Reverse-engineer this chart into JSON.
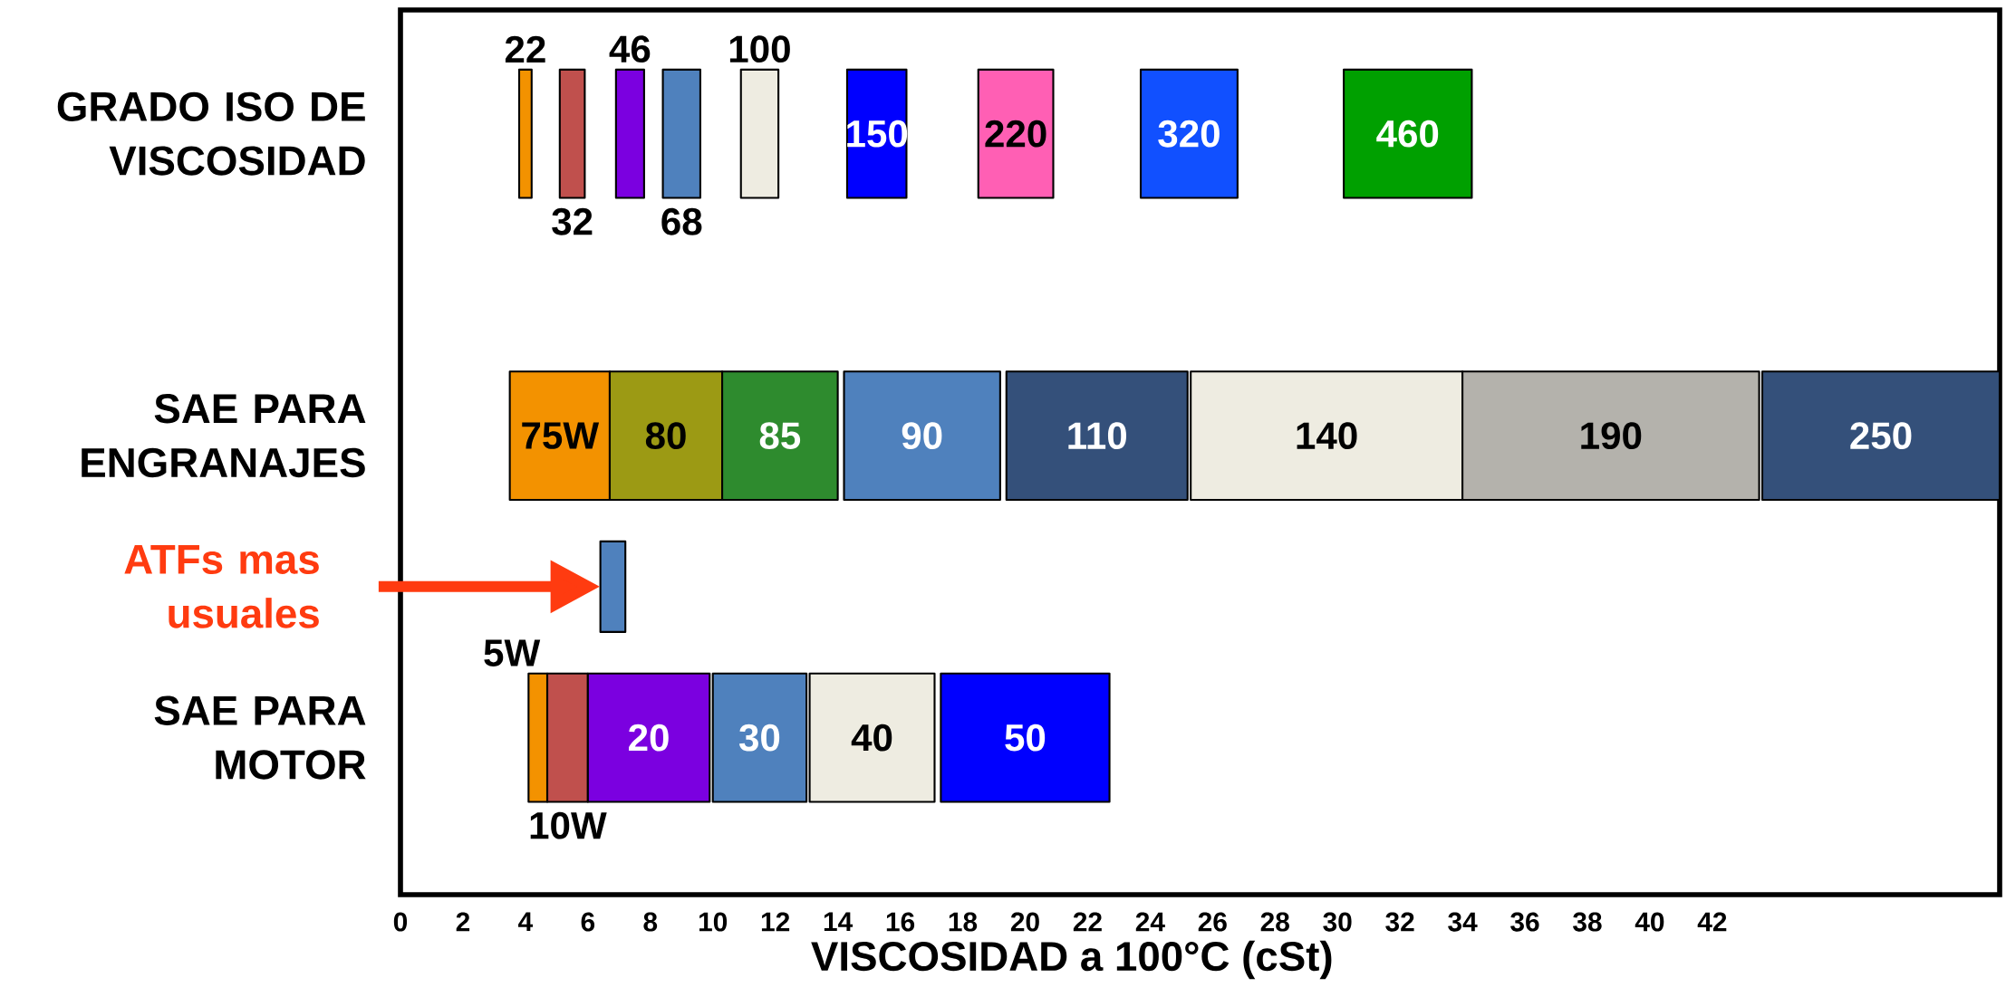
{
  "chart_data": {
    "type": "bar",
    "orientation": "horizontal",
    "xlabel": "VISCOSIDAD a 100°C (cSt)",
    "categories": [
      "GRADO ISO DE VISCOSIDAD",
      null,
      "SAE PARA ENGRANAJES",
      null,
      "SAE PARA MOTOR"
    ],
    "xlim": [
      0,
      51.2
    ],
    "xticks": [
      0,
      2,
      4,
      6,
      8,
      10,
      12,
      14,
      16,
      18,
      20,
      22,
      24,
      26,
      28,
      30,
      32,
      34,
      36,
      38,
      40,
      42
    ],
    "annotations": [
      "ATFs mas usuales"
    ],
    "series": [
      {
        "name": "22",
        "color": "#f39200",
        "base": [
          3.8,
          null,
          null,
          null,
          null
        ],
        "values": [
          0.4,
          null,
          null,
          null,
          null
        ]
      },
      {
        "name": "32",
        "color": "#c0504d",
        "base": [
          5.1,
          null,
          null,
          null,
          null
        ],
        "values": [
          0.8,
          null,
          null,
          null,
          null
        ]
      },
      {
        "name": "46",
        "color": "#7b00e0",
        "base": [
          6.9,
          null,
          null,
          null,
          null
        ],
        "values": [
          0.9,
          null,
          null,
          null,
          null
        ]
      },
      {
        "name": "68",
        "color": "#4f81bd",
        "base": [
          8.4,
          null,
          null,
          null,
          null
        ],
        "values": [
          1.2,
          null,
          null,
          null,
          null
        ]
      },
      {
        "name": "100",
        "color": "#eeece1",
        "base": [
          10.9,
          null,
          null,
          null,
          null
        ],
        "values": [
          1.2,
          null,
          null,
          null,
          null
        ]
      },
      {
        "name": "150",
        "color": "#0000ff",
        "base": [
          14.3,
          null,
          null,
          null,
          null
        ],
        "values": [
          1.9,
          null,
          null,
          null,
          null
        ]
      },
      {
        "name": "220",
        "color": "#ff5fb4",
        "base": [
          18.5,
          null,
          null,
          null,
          null
        ],
        "values": [
          2.4,
          null,
          null,
          null,
          null
        ]
      },
      {
        "name": "320",
        "color": "#1150ff",
        "base": [
          23.7,
          null,
          null,
          null,
          null
        ],
        "values": [
          3.1,
          null,
          null,
          null,
          null
        ]
      },
      {
        "name": "460",
        "color": "#00a000",
        "base": [
          30.2,
          null,
          null,
          null,
          null
        ],
        "values": [
          4.1,
          null,
          null,
          null,
          null
        ]
      },
      {
        "name": "75W",
        "color": "#f39200",
        "base": [
          null,
          null,
          3.5,
          null,
          null
        ],
        "values": [
          null,
          null,
          3.2,
          null,
          null
        ]
      },
      {
        "name": "80",
        "color": "#9c9a14",
        "base": [
          null,
          null,
          6.7,
          null,
          null
        ],
        "values": [
          null,
          null,
          3.6,
          null,
          null
        ]
      },
      {
        "name": "85",
        "color": "#2e8b2e",
        "base": [
          null,
          null,
          10.3,
          null,
          null
        ],
        "values": [
          null,
          null,
          3.7,
          null,
          null
        ]
      },
      {
        "name": "90",
        "color": "#4f81bd",
        "base": [
          null,
          null,
          14.2,
          null,
          null
        ],
        "values": [
          null,
          null,
          5.0,
          null,
          null
        ]
      },
      {
        "name": "110",
        "color": "#34507a",
        "base": [
          null,
          null,
          19.4,
          null,
          null
        ],
        "values": [
          null,
          null,
          5.8,
          null,
          null
        ]
      },
      {
        "name": "140",
        "color": "#eeece1",
        "base": [
          null,
          null,
          25.3,
          null,
          null
        ],
        "values": [
          null,
          null,
          8.7,
          null,
          null
        ]
      },
      {
        "name": "190",
        "color": "#b4b2ac",
        "base": [
          null,
          null,
          34.0,
          null,
          null
        ],
        "values": [
          null,
          null,
          9.5,
          null,
          null
        ]
      },
      {
        "name": "250",
        "color": "#34507a",
        "base": [
          null,
          null,
          43.6,
          null,
          null
        ],
        "values": [
          null,
          null,
          7.6,
          null,
          null
        ]
      },
      {
        "color": "#4f81bd",
        "base": [
          null,
          null,
          null,
          6.4,
          null
        ],
        "values": [
          null,
          null,
          null,
          0.8,
          null
        ]
      },
      {
        "name": "5W",
        "color": "#f39200",
        "base": [
          null,
          null,
          null,
          null,
          4.1
        ],
        "values": [
          null,
          null,
          null,
          null,
          0.6
        ]
      },
      {
        "name": "10W",
        "color": "#c0504d",
        "base": [
          null,
          null,
          null,
          null,
          4.7
        ],
        "values": [
          null,
          null,
          null,
          null,
          1.3
        ]
      },
      {
        "name": "20",
        "color": "#7b00e0",
        "base": [
          null,
          null,
          null,
          null,
          6.0
        ],
        "values": [
          null,
          null,
          null,
          null,
          3.9
        ]
      },
      {
        "name": "30",
        "color": "#4f81bd",
        "base": [
          null,
          null,
          null,
          null,
          10.0
        ],
        "values": [
          null,
          null,
          null,
          null,
          3.0
        ]
      },
      {
        "name": "40",
        "color": "#eeece1",
        "base": [
          null,
          null,
          null,
          null,
          13.1
        ],
        "values": [
          null,
          null,
          null,
          null,
          4.0
        ]
      },
      {
        "name": "50",
        "color": "#0000ff",
        "base": [
          null,
          null,
          null,
          null,
          17.3
        ],
        "values": [
          null,
          null,
          null,
          null,
          5.4
        ]
      }
    ]
  }
}
